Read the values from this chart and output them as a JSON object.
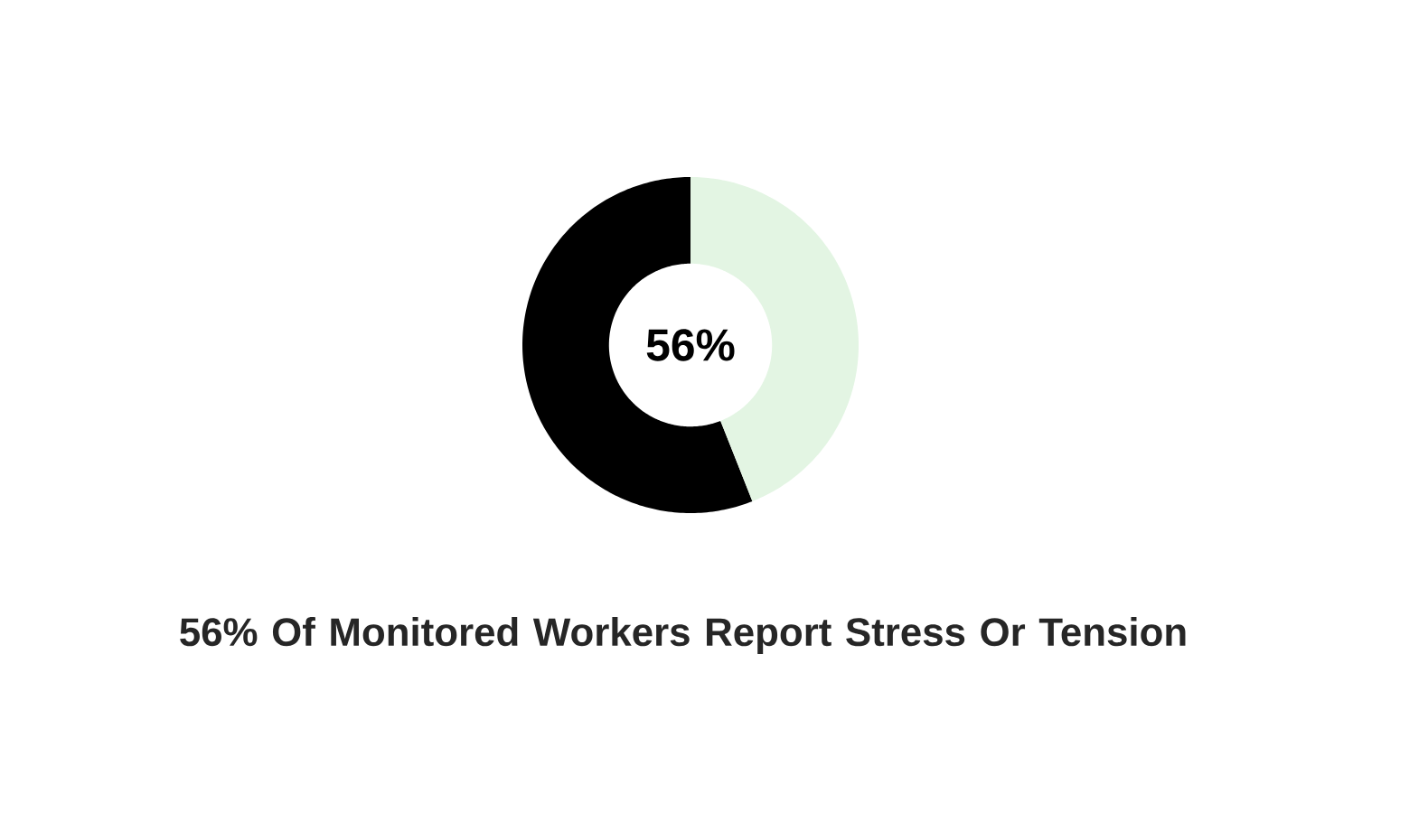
{
  "chart_data": {
    "type": "donut",
    "title": "56% Of Monitored Workers Report Stress Or Tension",
    "categories": [
      null,
      null
    ],
    "values": [
      56,
      44
    ],
    "colors": [
      "#000000",
      "#e3f5e3"
    ],
    "annotations": [
      "56%"
    ]
  }
}
